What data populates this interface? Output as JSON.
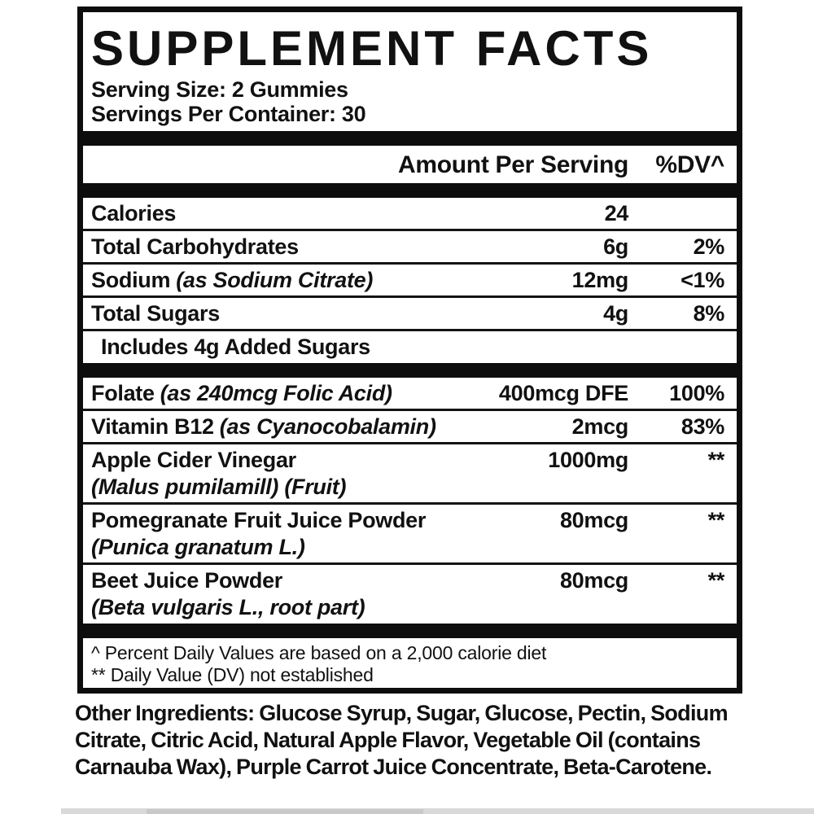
{
  "label": {
    "title": "SUPPLEMENT FACTS",
    "serving_size": "Serving Size: 2 Gummies",
    "servings_per_container": "Servings Per Container: 30",
    "columns": {
      "amount_header": "Amount Per Serving",
      "dv_header": "%DV^"
    },
    "rows": [
      {
        "name": "Calories",
        "amount": "24",
        "dv": ""
      },
      {
        "name": "Total Carbohydrates",
        "amount": "6g",
        "dv": "2%"
      },
      {
        "name": "Sodium",
        "name_italic": "(as Sodium Citrate)",
        "amount": "12mg",
        "dv": "<1%"
      },
      {
        "name": "Total Sugars",
        "amount": "4g",
        "dv": "8%"
      },
      {
        "name": "Includes 4g Added Sugars",
        "amount": "",
        "dv": ""
      },
      {
        "name": "Folate",
        "name_italic": "(as 240mcg Folic Acid)",
        "amount": "400mcg DFE",
        "dv": "100%"
      },
      {
        "name": "Vitamin B12",
        "name_italic": "(as Cyanocobalamin)",
        "amount": "2mcg",
        "dv": "83%"
      },
      {
        "name": "Apple Cider Vinegar",
        "botanical": "(Malus pumilamill) (Fruit)",
        "amount": "1000mg",
        "dv": "**"
      },
      {
        "name": "Pomegranate Fruit Juice Powder",
        "botanical": "(Punica granatum L.)",
        "amount": "80mcg",
        "dv": "**"
      },
      {
        "name": "Beet Juice Powder",
        "botanical": "(Beta vulgaris L., root part)",
        "amount": "80mcg",
        "dv": "**"
      }
    ],
    "footnotes": [
      "^ Percent Daily Values are based on a 2,000 calorie diet",
      "** Daily Value (DV) not established"
    ]
  },
  "other_ingredients": {
    "text": "Other Ingredients: Glucose Syrup, Sugar, Glucose, Pectin, Sodium Citrate, Citric Acid, Natural Apple Flavor, Vegetable Oil (contains Carnauba Wax), Purple Carrot Juice Concentrate, Beta-Carotene."
  },
  "colors": {
    "text": "#111111",
    "panel_border": "#0d0d0d",
    "separator_bar": "#0d0d0d",
    "bottom_strip": "#d9d9d9",
    "bottom_strip_dark": "#c9c9c9",
    "background": "#ffffff"
  }
}
